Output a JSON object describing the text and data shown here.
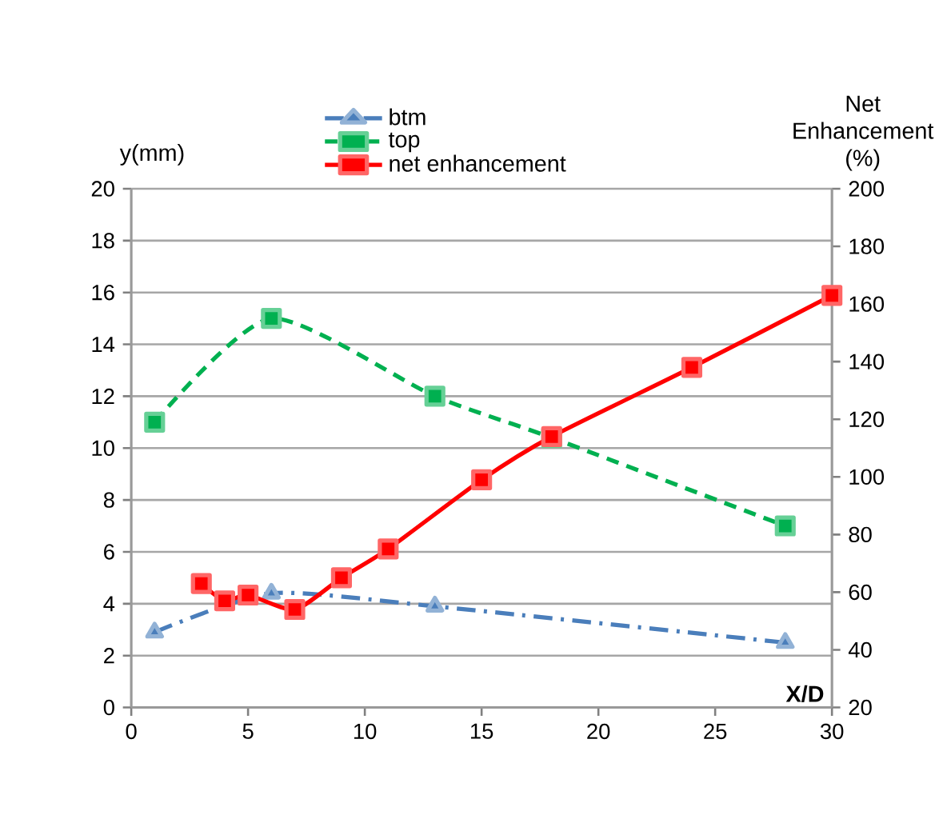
{
  "chart_data": {
    "type": "line",
    "xlabel": "X/D",
    "ylabel": "y(mm)",
    "y2label": "Net Enhancement (%)",
    "xlim": [
      0,
      30
    ],
    "xticks": [
      0,
      5,
      10,
      15,
      20,
      25,
      30
    ],
    "ylim": [
      0,
      20
    ],
    "yticks": [
      0,
      2,
      4,
      6,
      8,
      10,
      12,
      14,
      16,
      18,
      20
    ],
    "y2lim": [
      20,
      200
    ],
    "y2ticks": [
      20,
      40,
      60,
      80,
      100,
      120,
      140,
      160,
      180,
      200
    ],
    "grid": "y",
    "legend": "top",
    "series": [
      {
        "name": "btm",
        "color": "#4a7ebb",
        "marker": "triangle",
        "line_style": "dashdot",
        "x": [
          1,
          6,
          13,
          28
        ],
        "values": [
          2.9,
          4.4,
          3.9,
          2.5
        ]
      },
      {
        "name": "top",
        "color": "#00b050",
        "marker": "square",
        "line_style": "dashed",
        "x": [
          1,
          6,
          13,
          18,
          28
        ],
        "values": [
          11,
          15,
          12,
          10.4,
          7
        ]
      },
      {
        "name": "net enhancement",
        "color": "#ff0000",
        "marker": "square",
        "line_style": "solid",
        "axis": "y2",
        "x": [
          3,
          4,
          5,
          7,
          9,
          11,
          15,
          18,
          24,
          30
        ],
        "values": [
          63,
          57,
          59,
          54,
          65,
          75,
          99,
          114,
          138,
          163
        ]
      }
    ]
  }
}
